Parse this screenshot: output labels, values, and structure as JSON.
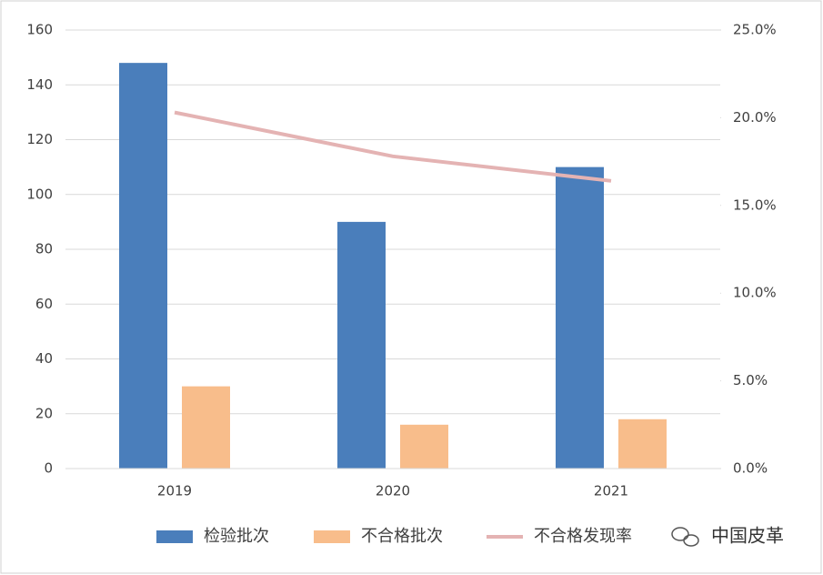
{
  "chart_data": {
    "type": "bar-line",
    "categories": [
      "2019",
      "2020",
      "2021"
    ],
    "series": [
      {
        "name": "检验批次",
        "color": "#4a7ebb",
        "type": "bar",
        "values": [
          148,
          90,
          110
        ]
      },
      {
        "name": "不合格批次",
        "color": "#f8bd8b",
        "type": "bar",
        "values": [
          30,
          16,
          18
        ]
      },
      {
        "name": "不合格发现率",
        "color": "#e4b3b3",
        "type": "line",
        "axis": "y2",
        "values": [
          20.3,
          17.8,
          16.4
        ]
      }
    ],
    "ylim": [
      0,
      160
    ],
    "yticks": [
      0,
      20,
      40,
      60,
      80,
      100,
      120,
      140,
      160
    ],
    "y2lim": [
      0,
      25
    ],
    "y2ticks": [
      {
        "value": 0,
        "label": "0.0%"
      },
      {
        "value": 5,
        "label": "5.0%"
      },
      {
        "value": 10,
        "label": "10.0%"
      },
      {
        "value": 15,
        "label": "15.0%"
      },
      {
        "value": 20,
        "label": "20.0%"
      },
      {
        "value": 25,
        "label": "25.0%"
      }
    ],
    "grid": true,
    "legend": "bottom"
  },
  "watermark": "中国皮革"
}
